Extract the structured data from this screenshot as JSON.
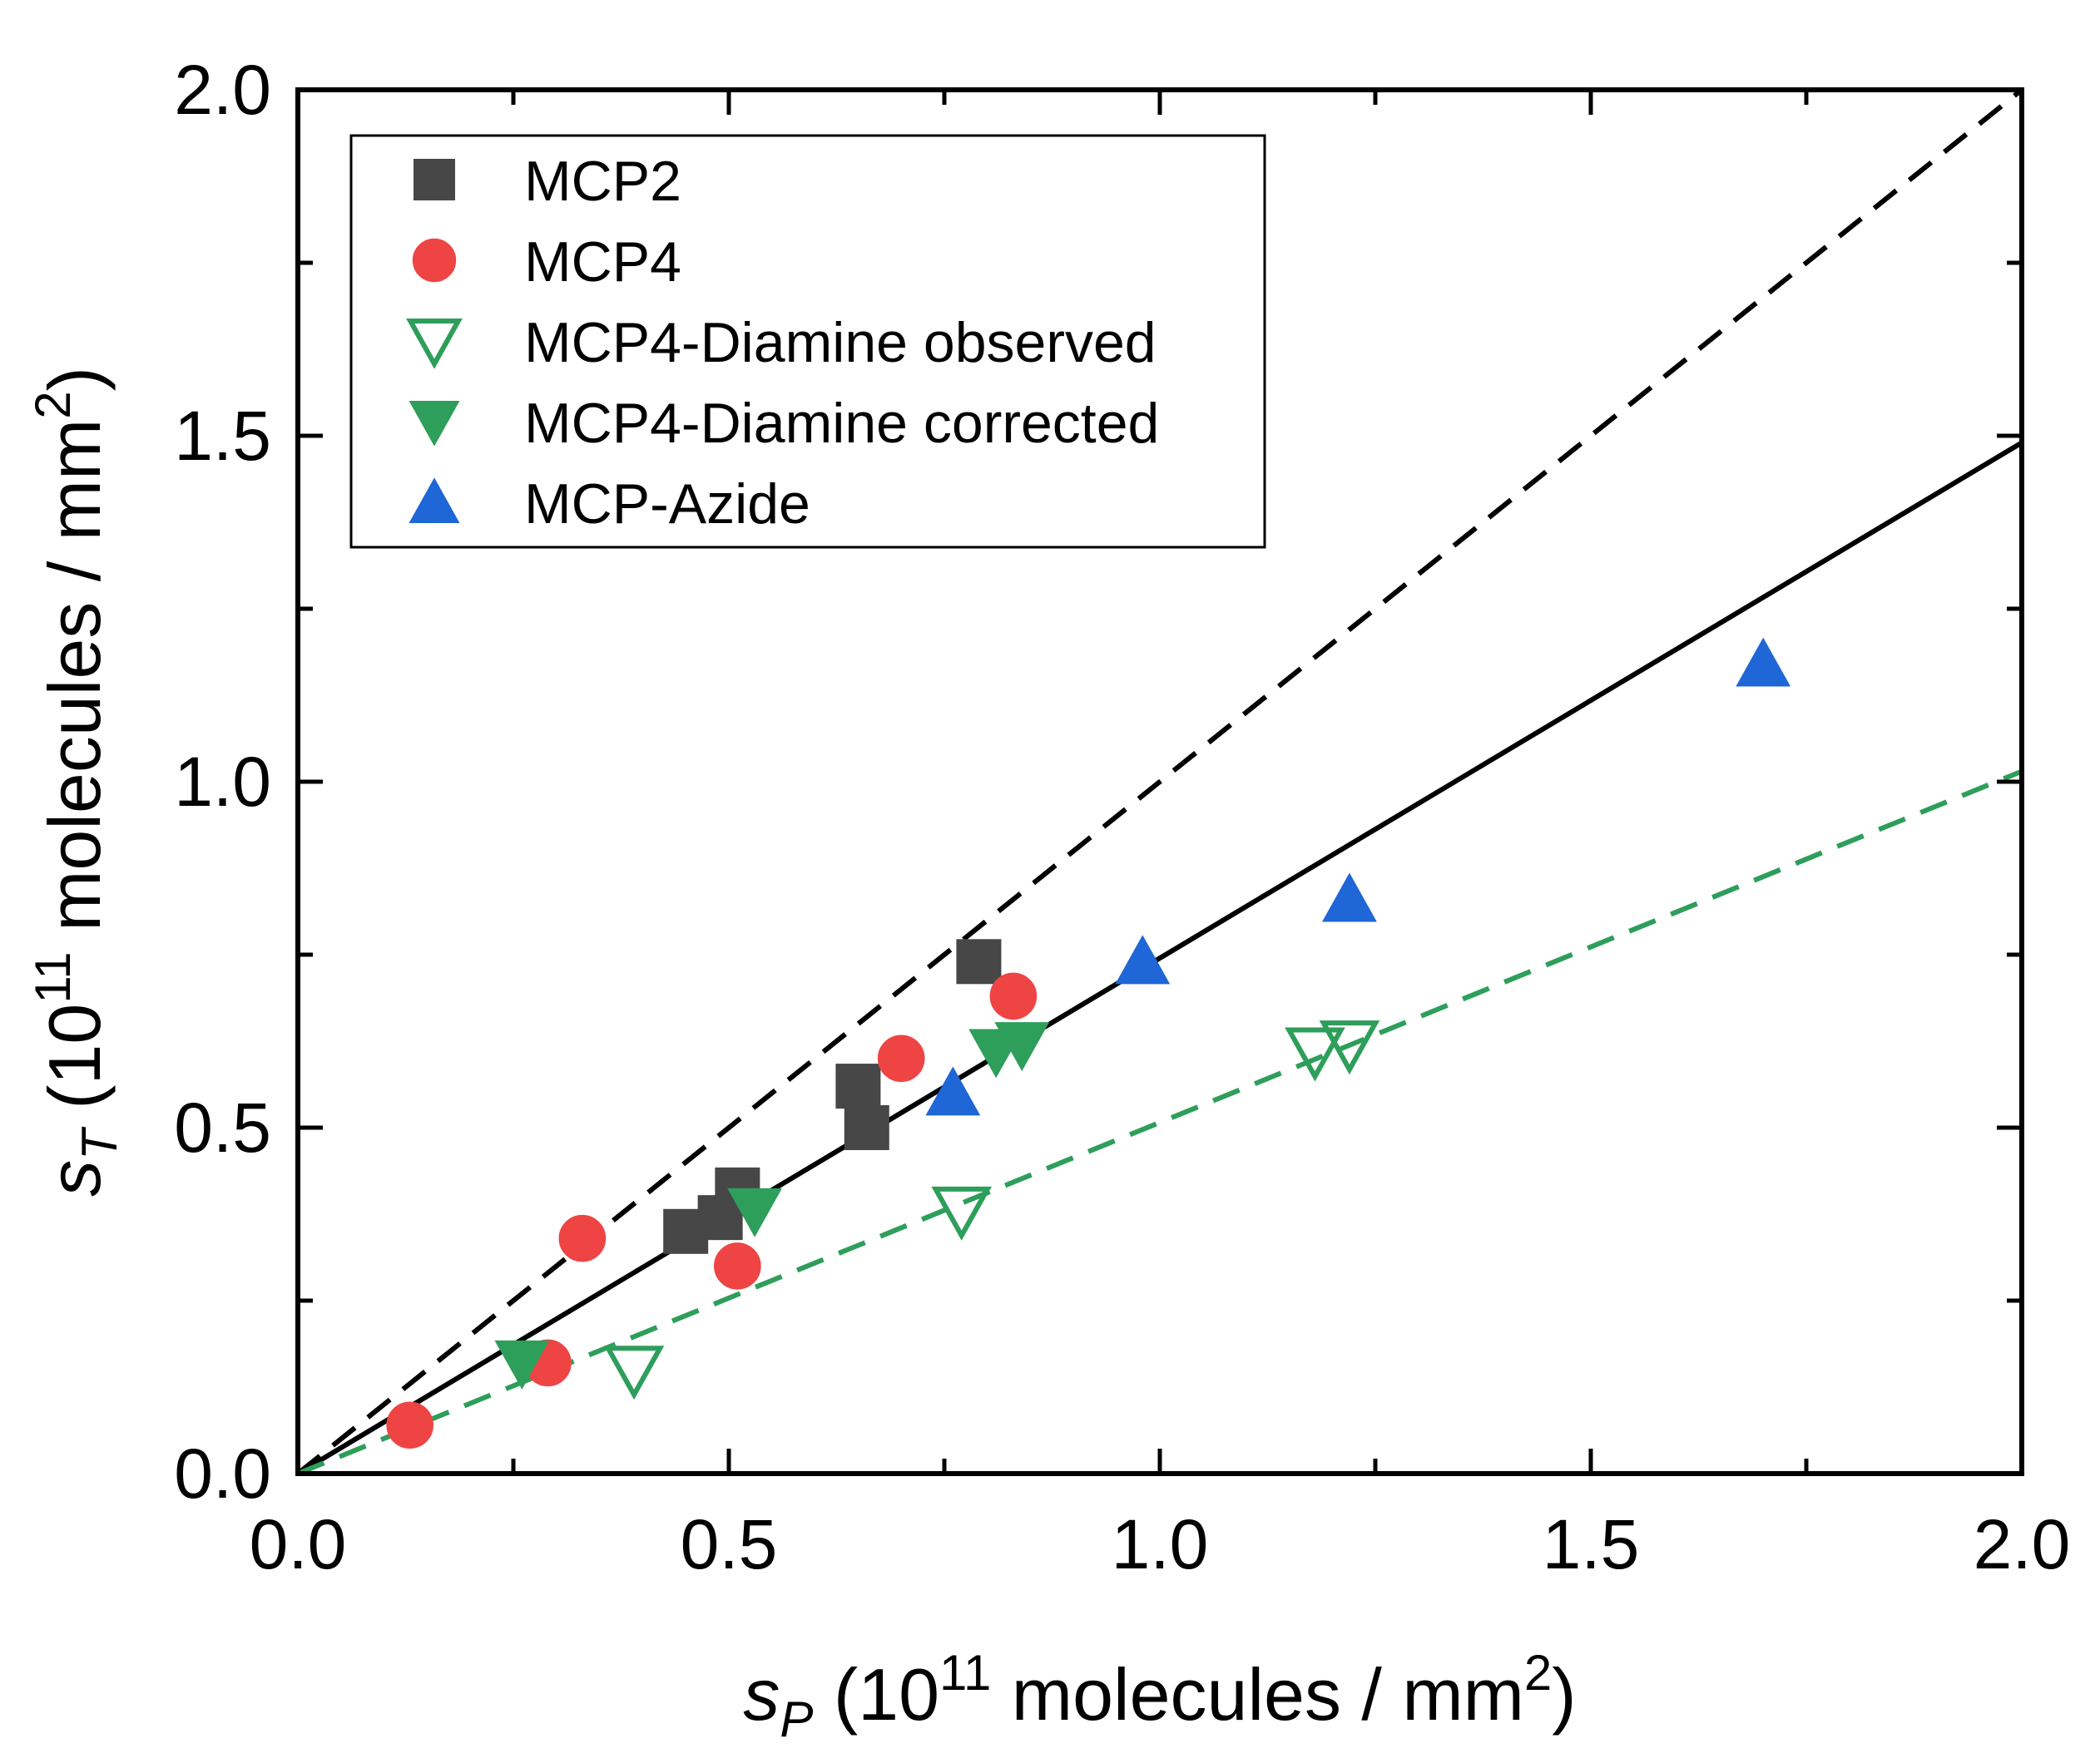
{
  "chart_data": {
    "type": "scatter",
    "title": "",
    "xlabel": {
      "symbol": "s",
      "sub": "P",
      "pre": " (10",
      "sup": "11",
      "post": " molecules / mm",
      "sup2": "2",
      "close": ")"
    },
    "ylabel": {
      "symbol": "s",
      "sub": "T",
      "pre": " (10",
      "sup": "11",
      "post": " molecules / mm",
      "sup2": "2",
      "close": ")"
    },
    "xlim": [
      0.0,
      2.0
    ],
    "ylim": [
      0.0,
      2.0
    ],
    "xticks": [
      "0.0",
      "0.5",
      "1.0",
      "1.5",
      "2.0"
    ],
    "yticks": [
      "0.0",
      "0.5",
      "1.0",
      "1.5",
      "2.0"
    ],
    "grid": false,
    "legend_position": "top-left",
    "series": [
      {
        "name": "MCP2",
        "marker": "square",
        "filled": true,
        "color": "#474747",
        "points": [
          [
            0.45,
            0.35
          ],
          [
            0.49,
            0.37
          ],
          [
            0.51,
            0.41
          ],
          [
            0.65,
            0.56
          ],
          [
            0.66,
            0.5
          ],
          [
            0.79,
            0.74
          ]
        ]
      },
      {
        "name": "MCP4",
        "marker": "circle",
        "filled": true,
        "color": "#ef4444",
        "points": [
          [
            0.13,
            0.07
          ],
          [
            0.29,
            0.16
          ],
          [
            0.33,
            0.34
          ],
          [
            0.51,
            0.3
          ],
          [
            0.7,
            0.6
          ],
          [
            0.83,
            0.69
          ]
        ]
      },
      {
        "name": "MCP4-Diamine observed",
        "marker": "triangle-down",
        "filled": false,
        "color": "#2e9e5b",
        "points": [
          [
            0.39,
            0.15
          ],
          [
            0.77,
            0.38
          ],
          [
            1.18,
            0.61
          ],
          [
            1.22,
            0.62
          ]
        ]
      },
      {
        "name": "MCP4-Diamine corrected",
        "marker": "triangle-down",
        "filled": true,
        "color": "#2e9e5b",
        "points": [
          [
            0.26,
            0.16
          ],
          [
            0.53,
            0.38
          ],
          [
            0.81,
            0.61
          ],
          [
            0.84,
            0.62
          ]
        ]
      },
      {
        "name": "MCP-Azide",
        "marker": "triangle-up",
        "filled": true,
        "color": "#1f66d6",
        "points": [
          [
            0.76,
            0.55
          ],
          [
            0.98,
            0.74
          ],
          [
            1.22,
            0.83
          ],
          [
            1.7,
            1.17
          ]
        ]
      }
    ],
    "lines": [
      {
        "name": "y = x",
        "style": "dashed",
        "color": "#000000",
        "from": [
          0.0,
          0.0
        ],
        "to": [
          2.0,
          2.0
        ]
      },
      {
        "name": "fit",
        "style": "solid",
        "color": "#000000",
        "from": [
          0.0,
          0.0
        ],
        "to": [
          2.0,
          1.49
        ]
      },
      {
        "name": "diamine fit",
        "style": "dashed",
        "color": "#2e9e5b",
        "from": [
          0.0,
          0.0
        ],
        "to": [
          2.0,
          1.015
        ]
      }
    ]
  }
}
